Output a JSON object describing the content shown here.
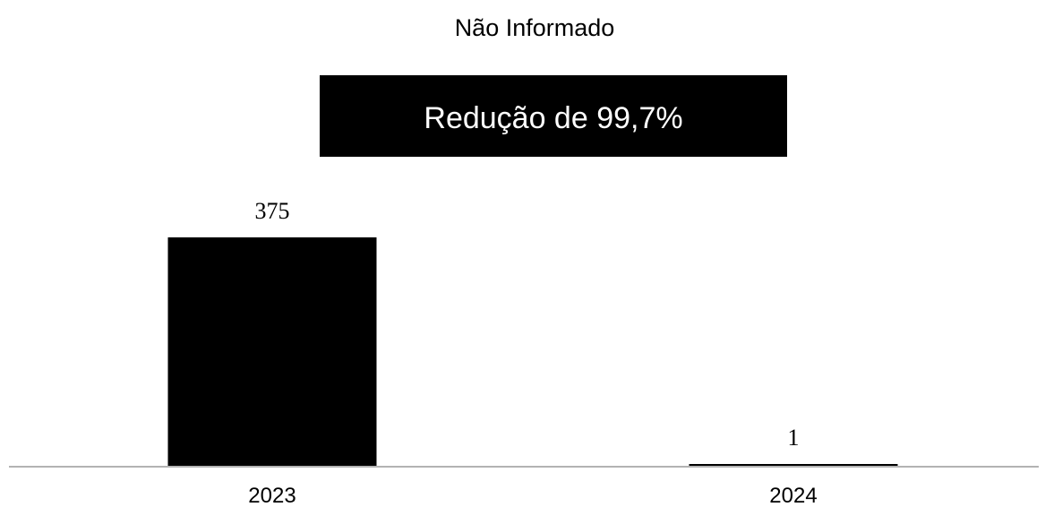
{
  "chart_data": {
    "type": "bar",
    "title": "Não Informado",
    "annotation": "Redução de  99,7%",
    "categories": [
      "2023",
      "2024"
    ],
    "values": [
      375,
      1
    ],
    "data_labels": [
      "375",
      "1"
    ],
    "xlabel": "",
    "ylabel": "",
    "ylim": [
      0,
      375
    ],
    "grid": false,
    "legend": "none"
  },
  "colors": {
    "bar": "#000000",
    "banner": "#000000",
    "banner_text": "#ffffff",
    "axis": "#b3b3b3",
    "background": "#ffffff"
  }
}
